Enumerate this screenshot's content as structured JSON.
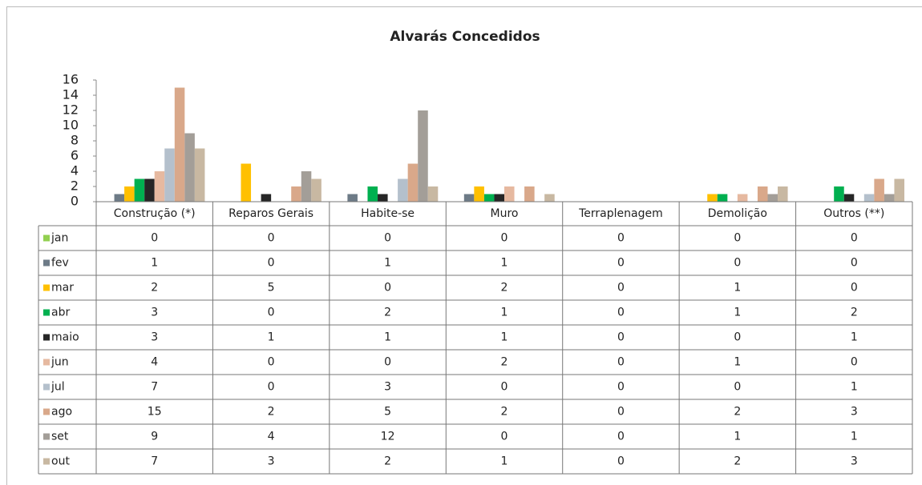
{
  "chart_data": {
    "type": "bar",
    "title": "Alvarás Concedidos",
    "categories": [
      "Construção (*)",
      "Reparos Gerais",
      "Habite-se",
      "Muro",
      "Terraplenagem",
      "Demolição",
      "Outros (**)"
    ],
    "ylim": [
      0,
      16
    ],
    "yticks": [
      0,
      2,
      4,
      6,
      8,
      10,
      12,
      14,
      16
    ],
    "grid": false,
    "series": [
      {
        "name": "jan",
        "color": "#92d050",
        "values": [
          0,
          0,
          0,
          0,
          0,
          0,
          0
        ]
      },
      {
        "name": "fev",
        "color": "#6d7b87",
        "values": [
          1,
          0,
          1,
          1,
          0,
          0,
          0
        ]
      },
      {
        "name": "mar",
        "color": "#ffc000",
        "values": [
          2,
          5,
          0,
          2,
          0,
          1,
          0
        ]
      },
      {
        "name": "abr",
        "color": "#00b050",
        "values": [
          3,
          0,
          2,
          1,
          0,
          1,
          2
        ]
      },
      {
        "name": "maio",
        "color": "#262626",
        "values": [
          3,
          1,
          1,
          1,
          0,
          0,
          1
        ]
      },
      {
        "name": "jun",
        "color": "#e6b9a0",
        "values": [
          4,
          0,
          0,
          2,
          0,
          1,
          0
        ]
      },
      {
        "name": "jul",
        "color": "#b4c0cc",
        "values": [
          7,
          0,
          3,
          0,
          0,
          0,
          1
        ]
      },
      {
        "name": "ago",
        "color": "#d9a88a",
        "values": [
          15,
          2,
          5,
          2,
          0,
          2,
          3
        ]
      },
      {
        "name": "set",
        "color": "#a39e98",
        "values": [
          9,
          4,
          12,
          0,
          0,
          1,
          1
        ]
      },
      {
        "name": "out",
        "color": "#c8b8a2",
        "values": [
          7,
          3,
          2,
          1,
          0,
          2,
          3
        ]
      }
    ]
  }
}
